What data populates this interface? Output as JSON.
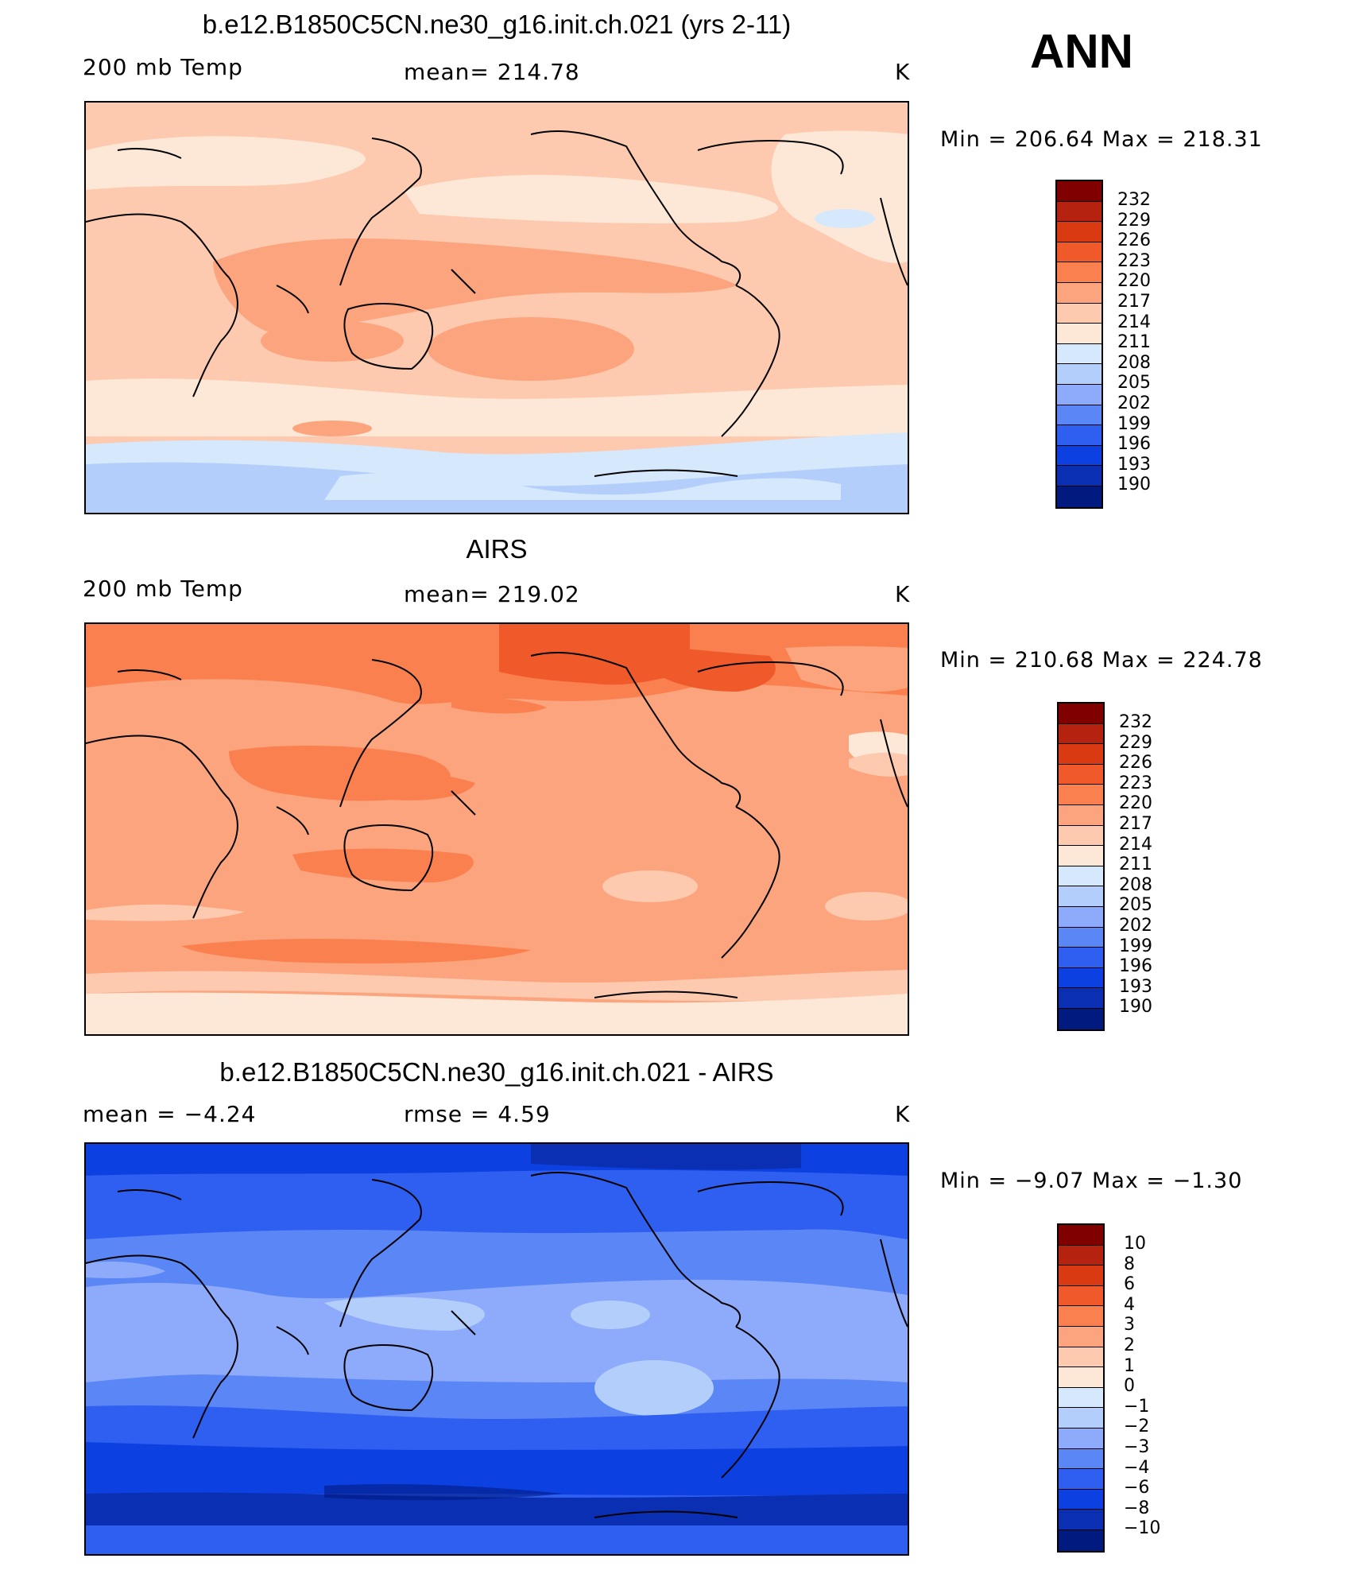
{
  "season": "ANN",
  "panels": [
    {
      "title": "b.e12.B1850C5CN.ne30_g16.init.ch.021 (yrs 2-11)",
      "left_label": "200 mb Temp",
      "center_label": "mean=  214.78",
      "units": "K",
      "minmax": "Min  =  206.64  Max  =  218.31",
      "scheme": "model"
    },
    {
      "title": "AIRS",
      "left_label": "200 mb Temp",
      "center_label": "mean=  219.02",
      "units": "K",
      "minmax": "Min  =  210.68  Max  =  224.78",
      "scheme": "obs"
    },
    {
      "title": "b.e12.B1850C5CN.ne30_g16.init.ch.021 - AIRS",
      "left_label": "mean  =    −4.24",
      "center_label": "rmse  =     4.59",
      "units": "K",
      "minmax": "Min  =    −9.07  Max  =    −1.30",
      "scheme": "diff"
    }
  ],
  "colorbar_abs": {
    "labels": [
      "232",
      "229",
      "226",
      "223",
      "220",
      "217",
      "214",
      "211",
      "208",
      "205",
      "202",
      "199",
      "196",
      "193",
      "190"
    ],
    "colors": [
      "#800000",
      "#b52310",
      "#d93a12",
      "#f05a2a",
      "#fb8050",
      "#fca47d",
      "#fdcab0",
      "#fde8d8",
      "#d6e8fb",
      "#b4cefc",
      "#8eaafa",
      "#5a86f6",
      "#2f5ff0",
      "#0d40e0",
      "#0a2fb3",
      "#001a80"
    ]
  },
  "colorbar_diff": {
    "labels": [
      "10",
      "8",
      "6",
      "4",
      "3",
      "2",
      "1",
      "0",
      "−1",
      "−2",
      "−3",
      "−4",
      "−6",
      "−8",
      "−10"
    ],
    "colors": [
      "#800000",
      "#b52310",
      "#d93a12",
      "#f05a2a",
      "#fb8050",
      "#fca47d",
      "#fdcab0",
      "#fde8d8",
      "#d6e8fb",
      "#b4cefc",
      "#8eaafa",
      "#5a86f6",
      "#2f5ff0",
      "#0d40e0",
      "#0a2fb3",
      "#001a80"
    ]
  }
}
